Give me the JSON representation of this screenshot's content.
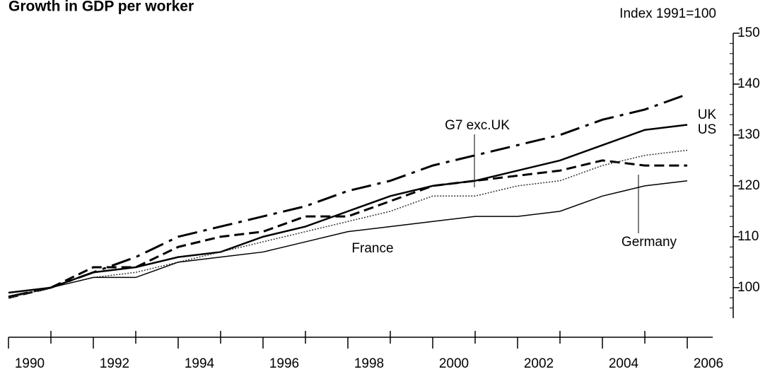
{
  "chart_data": {
    "type": "line",
    "title": "Growth in GDP per worker",
    "subtitle": "Index 1991=100",
    "x": [
      1990,
      1991,
      1992,
      1993,
      1994,
      1995,
      1996,
      1997,
      1998,
      1999,
      2000,
      2001,
      2002,
      2003,
      2004,
      2005,
      2006
    ],
    "series": [
      {
        "name": "UK",
        "color": "#000000",
        "style": "dashdot",
        "values": [
          98.2,
          100,
          103,
          106,
          110,
          112,
          114,
          116,
          119,
          121,
          124,
          126,
          128,
          130,
          133,
          135,
          138
        ]
      },
      {
        "name": "US",
        "color": "#000000",
        "style": "solid-thick",
        "values": [
          99,
          100,
          103,
          104,
          106,
          107,
          110,
          112,
          115,
          118,
          120,
          121,
          123,
          125,
          128,
          131,
          132
        ]
      },
      {
        "name": "Germany",
        "color": "#000000",
        "style": "dashed",
        "values": [
          98,
          100,
          104,
          104,
          108,
          110,
          111,
          114,
          114,
          117,
          120,
          121,
          122,
          123,
          125,
          124,
          124
        ]
      },
      {
        "name": "G7 exc.UK",
        "color": "#333333",
        "style": "dotted",
        "values": [
          98,
          100,
          102,
          103,
          105,
          107,
          109,
          111,
          113,
          115,
          118,
          118,
          120,
          121,
          124,
          126,
          127
        ]
      },
      {
        "name": "France",
        "color": "#000000",
        "style": "solid-thin",
        "values": [
          99,
          100,
          102,
          102,
          105,
          106,
          107,
          109,
          111,
          112,
          113,
          114,
          114,
          115,
          118,
          120,
          121
        ]
      }
    ],
    "xlim": [
      1990,
      2006.6
    ],
    "xticks": [
      1990,
      1992,
      1994,
      1996,
      1998,
      2000,
      2002,
      2004,
      2006
    ],
    "xminorticks": [
      1991,
      1993,
      1995,
      1997,
      1999,
      2001,
      2003,
      2005
    ],
    "ylim": [
      94,
      150
    ],
    "yticks": [
      100,
      110,
      120,
      130,
      140,
      150
    ],
    "yminorticks": [
      96,
      98,
      102,
      104,
      106,
      108,
      112,
      114,
      116,
      118,
      122,
      124,
      126,
      128,
      132,
      134,
      136,
      138,
      142,
      144,
      146,
      148
    ],
    "grid": false
  }
}
